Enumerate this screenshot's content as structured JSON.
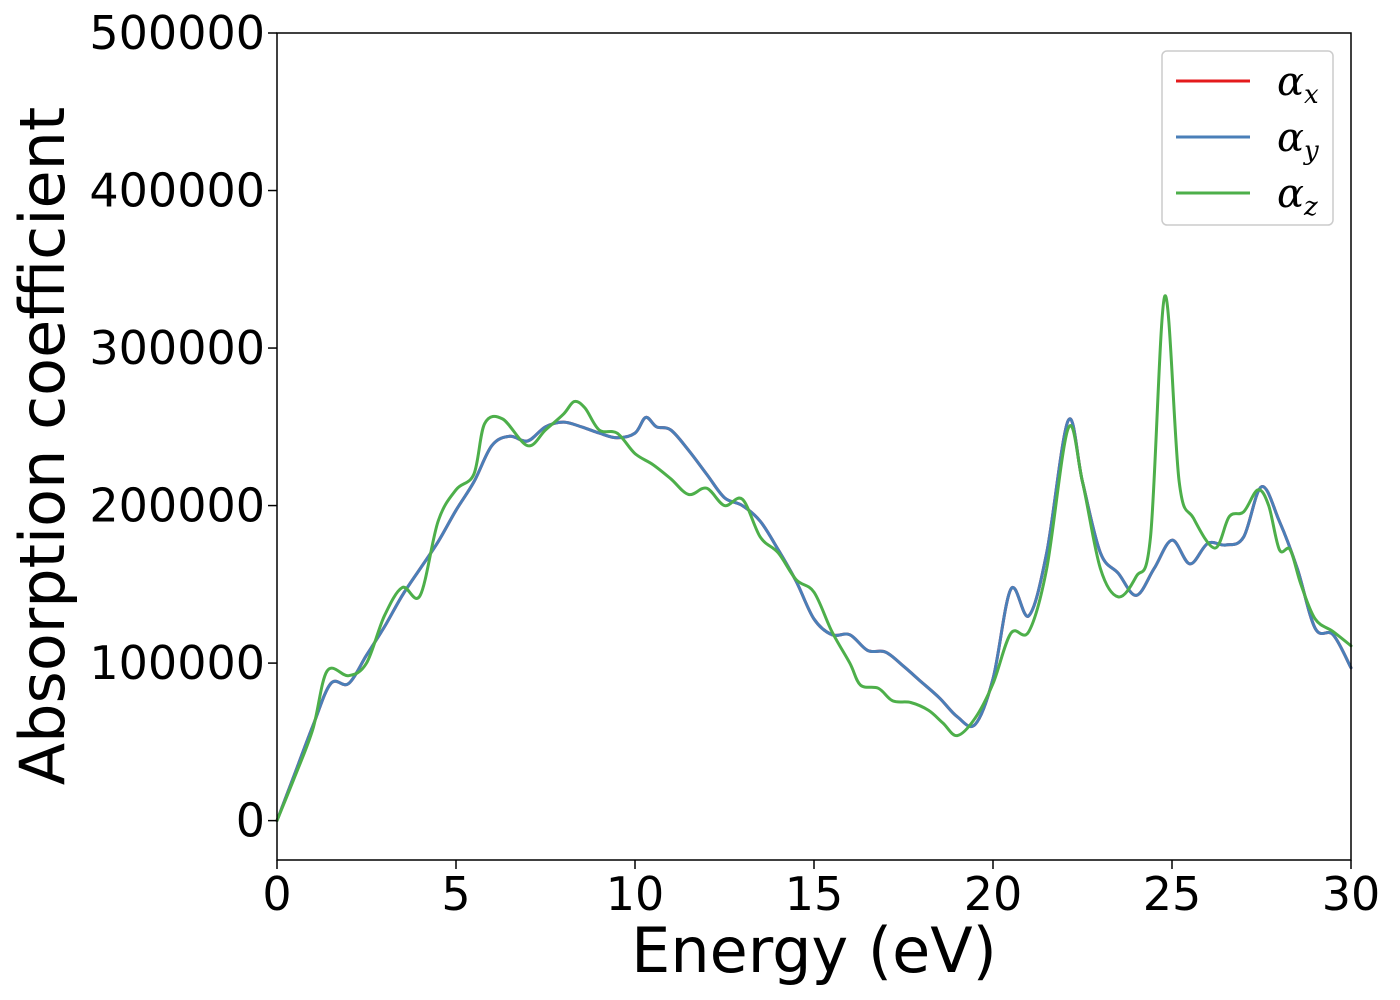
{
  "chart_data": {
    "type": "line",
    "title": "",
    "xlabel": "Energy (eV)",
    "ylabel": "Absorption coefficient",
    "xlim": [
      0,
      30
    ],
    "ylim": [
      -25000,
      500000
    ],
    "xticks": [
      0,
      5,
      10,
      15,
      20,
      25,
      30
    ],
    "yticks": [
      0,
      100000,
      200000,
      300000,
      400000,
      500000
    ],
    "xtick_labels": [
      "0",
      "5",
      "10",
      "15",
      "20",
      "25",
      "30"
    ],
    "ytick_labels": [
      "0",
      "100000",
      "200000",
      "300000",
      "400000",
      "500000"
    ],
    "grid": false,
    "legend": {
      "position": "top-right",
      "entries": [
        "αx",
        "αy",
        "αz"
      ]
    },
    "series": [
      {
        "name": "αx",
        "symbol": "α",
        "subscript": "x",
        "color": "#e41a1c",
        "points": [
          [
            0,
            0
          ],
          [
            0.5,
            30000
          ],
          [
            1,
            60000
          ],
          [
            1.5,
            87000
          ],
          [
            2,
            87000
          ],
          [
            2.5,
            105000
          ],
          [
            3,
            123000
          ],
          [
            3.5,
            143000
          ],
          [
            4,
            160000
          ],
          [
            4.5,
            177000
          ],
          [
            5,
            197000
          ],
          [
            5.5,
            215000
          ],
          [
            6,
            238000
          ],
          [
            6.5,
            244000
          ],
          [
            7,
            241000
          ],
          [
            7.5,
            250000
          ],
          [
            8,
            253000
          ],
          [
            8.5,
            250000
          ],
          [
            9,
            246000
          ],
          [
            9.5,
            243000
          ],
          [
            10,
            246000
          ],
          [
            10.3,
            256000
          ],
          [
            10.6,
            250000
          ],
          [
            11,
            248000
          ],
          [
            11.5,
            235000
          ],
          [
            12,
            220000
          ],
          [
            12.5,
            205000
          ],
          [
            13,
            200000
          ],
          [
            13.5,
            190000
          ],
          [
            14,
            172000
          ],
          [
            14.5,
            152000
          ],
          [
            15,
            128000
          ],
          [
            15.5,
            118000
          ],
          [
            16,
            118000
          ],
          [
            16.5,
            108000
          ],
          [
            17,
            107000
          ],
          [
            17.5,
            98000
          ],
          [
            18,
            88000
          ],
          [
            18.5,
            78000
          ],
          [
            19,
            66000
          ],
          [
            19.5,
            61000
          ],
          [
            20,
            90000
          ],
          [
            20.5,
            147000
          ],
          [
            21,
            130000
          ],
          [
            21.5,
            170000
          ],
          [
            22.1,
            254000
          ],
          [
            22.5,
            215000
          ],
          [
            23,
            170000
          ],
          [
            23.5,
            157000
          ],
          [
            24,
            143000
          ],
          [
            24.5,
            160000
          ],
          [
            25,
            178000
          ],
          [
            25.5,
            163000
          ],
          [
            26,
            176000
          ],
          [
            26.5,
            175000
          ],
          [
            27,
            180000
          ],
          [
            27.5,
            212000
          ],
          [
            28,
            190000
          ],
          [
            28.5,
            160000
          ],
          [
            29,
            122000
          ],
          [
            29.5,
            118000
          ],
          [
            30,
            97000
          ]
        ]
      },
      {
        "name": "αy",
        "symbol": "α",
        "subscript": "y",
        "color": "#4a7fb8",
        "points": [
          [
            0,
            0
          ],
          [
            0.5,
            30000
          ],
          [
            1,
            60000
          ],
          [
            1.5,
            87000
          ],
          [
            2,
            87000
          ],
          [
            2.5,
            105000
          ],
          [
            3,
            123000
          ],
          [
            3.5,
            143000
          ],
          [
            4,
            160000
          ],
          [
            4.5,
            177000
          ],
          [
            5,
            197000
          ],
          [
            5.5,
            215000
          ],
          [
            6,
            238000
          ],
          [
            6.5,
            244000
          ],
          [
            7,
            241000
          ],
          [
            7.5,
            250000
          ],
          [
            8,
            253000
          ],
          [
            8.5,
            250000
          ],
          [
            9,
            246000
          ],
          [
            9.5,
            243000
          ],
          [
            10,
            246000
          ],
          [
            10.3,
            256000
          ],
          [
            10.6,
            250000
          ],
          [
            11,
            248000
          ],
          [
            11.5,
            235000
          ],
          [
            12,
            220000
          ],
          [
            12.5,
            205000
          ],
          [
            13,
            200000
          ],
          [
            13.5,
            190000
          ],
          [
            14,
            172000
          ],
          [
            14.5,
            152000
          ],
          [
            15,
            128000
          ],
          [
            15.5,
            118000
          ],
          [
            16,
            118000
          ],
          [
            16.5,
            108000
          ],
          [
            17,
            107000
          ],
          [
            17.5,
            98000
          ],
          [
            18,
            88000
          ],
          [
            18.5,
            78000
          ],
          [
            19,
            66000
          ],
          [
            19.5,
            61000
          ],
          [
            20,
            90000
          ],
          [
            20.5,
            147000
          ],
          [
            21,
            130000
          ],
          [
            21.5,
            170000
          ],
          [
            22.1,
            254000
          ],
          [
            22.5,
            215000
          ],
          [
            23,
            170000
          ],
          [
            23.5,
            157000
          ],
          [
            24,
            143000
          ],
          [
            24.5,
            160000
          ],
          [
            25,
            178000
          ],
          [
            25.5,
            163000
          ],
          [
            26,
            176000
          ],
          [
            26.5,
            175000
          ],
          [
            27,
            180000
          ],
          [
            27.5,
            212000
          ],
          [
            28,
            190000
          ],
          [
            28.5,
            160000
          ],
          [
            29,
            122000
          ],
          [
            29.5,
            118000
          ],
          [
            30,
            97000
          ]
        ]
      },
      {
        "name": "αz",
        "symbol": "α",
        "subscript": "z",
        "color": "#4daf4a",
        "points": [
          [
            0,
            0
          ],
          [
            0.5,
            28000
          ],
          [
            1,
            58000
          ],
          [
            1.4,
            95000
          ],
          [
            2,
            92000
          ],
          [
            2.5,
            100000
          ],
          [
            3,
            130000
          ],
          [
            3.5,
            148000
          ],
          [
            4,
            143000
          ],
          [
            4.5,
            190000
          ],
          [
            5,
            210000
          ],
          [
            5.5,
            220000
          ],
          [
            5.8,
            252000
          ],
          [
            6.3,
            255000
          ],
          [
            7,
            238000
          ],
          [
            7.5,
            248000
          ],
          [
            8,
            258000
          ],
          [
            8.3,
            266000
          ],
          [
            8.6,
            262000
          ],
          [
            9,
            248000
          ],
          [
            9.5,
            246000
          ],
          [
            10,
            233000
          ],
          [
            10.5,
            226000
          ],
          [
            11,
            217000
          ],
          [
            11.5,
            207000
          ],
          [
            12,
            211000
          ],
          [
            12.5,
            200000
          ],
          [
            13,
            204000
          ],
          [
            13.5,
            180000
          ],
          [
            14,
            170000
          ],
          [
            14.5,
            153000
          ],
          [
            15,
            145000
          ],
          [
            15.5,
            120000
          ],
          [
            16,
            100000
          ],
          [
            16.3,
            86000
          ],
          [
            16.8,
            84000
          ],
          [
            17.2,
            76000
          ],
          [
            17.7,
            75000
          ],
          [
            18.2,
            70000
          ],
          [
            18.6,
            62000
          ],
          [
            19,
            54000
          ],
          [
            19.5,
            65000
          ],
          [
            20,
            87000
          ],
          [
            20.5,
            119000
          ],
          [
            21,
            120000
          ],
          [
            21.5,
            160000
          ],
          [
            22.1,
            249000
          ],
          [
            22.5,
            215000
          ],
          [
            23,
            160000
          ],
          [
            23.5,
            142000
          ],
          [
            24,
            155000
          ],
          [
            24.4,
            180000
          ],
          [
            24.8,
            333000
          ],
          [
            25.2,
            215000
          ],
          [
            25.6,
            192000
          ],
          [
            26.2,
            173000
          ],
          [
            26.6,
            193000
          ],
          [
            27,
            196000
          ],
          [
            27.4,
            210000
          ],
          [
            27.7,
            200000
          ],
          [
            28,
            172000
          ],
          [
            28.3,
            172000
          ],
          [
            28.6,
            150000
          ],
          [
            29,
            128000
          ],
          [
            29.5,
            120000
          ],
          [
            30,
            111000
          ]
        ]
      }
    ]
  }
}
